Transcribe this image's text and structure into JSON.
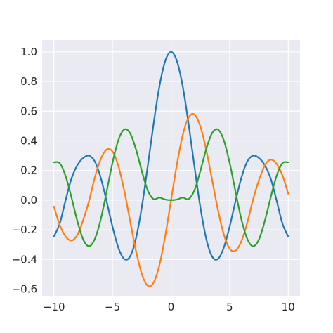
{
  "chart_data": {
    "type": "line",
    "title": "",
    "xlabel": "",
    "ylabel": "",
    "xlim": [
      -11,
      11
    ],
    "ylim": [
      -0.65,
      1.08
    ],
    "grid": true,
    "legend": "none",
    "background": "#eaeaf2",
    "grid_color": "#ffffff",
    "x_ticks": [
      -10,
      -5,
      0,
      5,
      10
    ],
    "x_tick_labels": [
      "−10",
      "−5",
      "0",
      "5",
      "10"
    ],
    "y_ticks": [
      -0.6,
      -0.4,
      -0.2,
      0.0,
      0.2,
      0.4,
      0.6,
      0.8,
      1.0
    ],
    "y_tick_labels": [
      "−0.6",
      "−0.4",
      "−0.2",
      "0.0",
      "0.2",
      "0.4",
      "0.6",
      "0.8",
      "1.0"
    ],
    "x": [
      -10,
      -9.5,
      -9,
      -8.5,
      -8,
      -7.5,
      -7,
      -6.5,
      -6,
      -5.5,
      -5,
      -4.5,
      -4,
      -3.5,
      -3,
      -2.5,
      -2,
      -1.5,
      -1,
      -0.5,
      0,
      0.5,
      1,
      1.5,
      2,
      2.5,
      3,
      3.5,
      4,
      4.5,
      5,
      5.5,
      6,
      6.5,
      7,
      7.5,
      8,
      8.5,
      9,
      9.5,
      10
    ],
    "series": [
      {
        "color": "#1f77b4",
        "values": [
          -0.246,
          -0.158,
          -0.001,
          0.145,
          0.235,
          0.284,
          0.3,
          0.26,
          0.151,
          -0.007,
          -0.178,
          -0.32,
          -0.397,
          -0.38,
          -0.26,
          -0.048,
          0.224,
          0.511,
          0.765,
          0.938,
          1.0,
          0.938,
          0.765,
          0.511,
          0.224,
          -0.048,
          -0.26,
          -0.38,
          -0.397,
          -0.32,
          -0.178,
          -0.007,
          0.151,
          0.26,
          0.3,
          0.284,
          0.235,
          0.145,
          -0.001,
          -0.158,
          -0.246
        ]
      },
      {
        "color": "#ff7f0e",
        "values": [
          -0.043,
          -0.167,
          -0.245,
          -0.273,
          -0.235,
          -0.135,
          -0.005,
          0.154,
          0.277,
          0.341,
          0.328,
          0.231,
          0.066,
          -0.138,
          -0.339,
          -0.497,
          -0.577,
          -0.558,
          -0.44,
          -0.242,
          0.0,
          0.242,
          0.44,
          0.558,
          0.577,
          0.497,
          0.339,
          0.138,
          -0.066,
          -0.231,
          -0.328,
          -0.341,
          -0.277,
          -0.154,
          0.005,
          0.135,
          0.235,
          0.273,
          0.245,
          0.167,
          0.043
        ]
      },
      {
        "color": "#2ca02c",
        "values": [
          0.255,
          0.249,
          0.163,
          0.019,
          -0.14,
          -0.265,
          -0.311,
          -0.261,
          -0.13,
          0.057,
          0.251,
          0.404,
          0.476,
          0.452,
          0.345,
          0.197,
          0.067,
          0.007,
          0.017,
          0.004,
          0.0,
          0.004,
          0.017,
          0.007,
          0.067,
          0.197,
          0.345,
          0.452,
          0.476,
          0.404,
          0.251,
          0.057,
          -0.13,
          -0.261,
          -0.311,
          -0.265,
          -0.14,
          0.019,
          0.163,
          0.249,
          0.255
        ]
      }
    ]
  }
}
